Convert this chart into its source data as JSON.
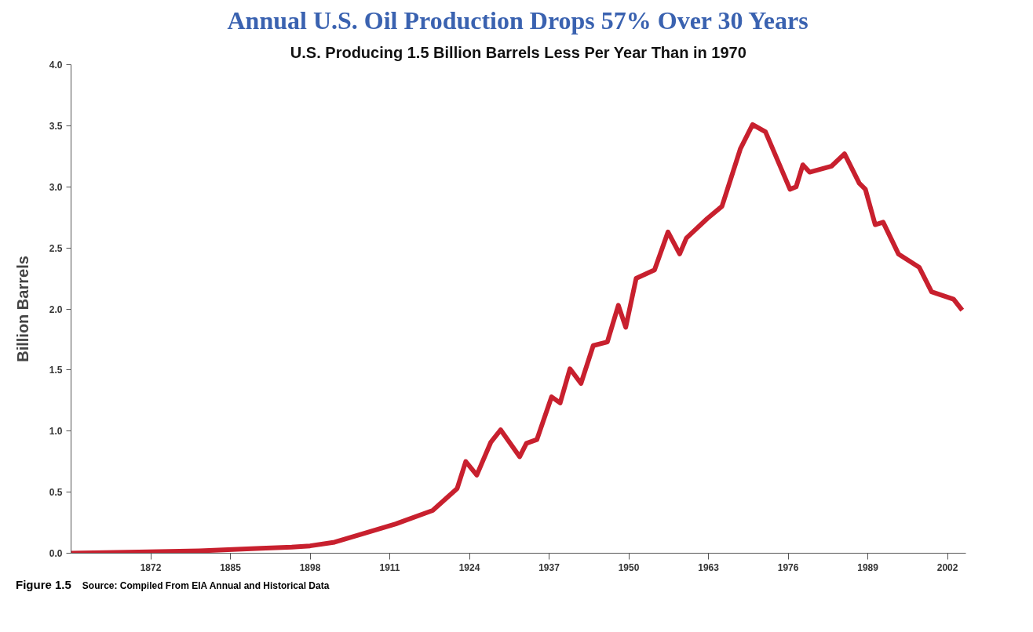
{
  "chart_data": {
    "type": "line",
    "title": "Annual U.S. Oil Production Drops 57% Over 30 Years",
    "subtitle": "U.S. Producing 1.5 Billion Barrels Less Per Year Than in 1970",
    "ylabel": "Billion Barrels",
    "annotations": [
      "Figure 1.5",
      "Source: Compiled From EIA Annual and Historical Data"
    ],
    "xlim": [
      1859,
      2005
    ],
    "ylim": [
      0,
      4
    ],
    "xticks": [
      1872,
      1885,
      1898,
      1911,
      1924,
      1937,
      1950,
      1963,
      1976,
      1989,
      2002
    ],
    "yticks": [
      {
        "value": 0,
        "label": "0.0"
      },
      0.5,
      {
        "value": 1,
        "label": "1.0"
      },
      1.5,
      {
        "value": 2,
        "label": "2.0"
      },
      2.5,
      {
        "value": 3,
        "label": "3.0"
      },
      3.5,
      {
        "value": 4,
        "label": "4.0"
      }
    ],
    "grid": false,
    "marker": "none",
    "line_style": "solid",
    "series": [
      {
        "color": "#c8202e",
        "x": [
          1859,
          1870,
          1880,
          1890,
          1895,
          1898,
          1902,
          1906,
          1912,
          1918,
          1922,
          1923.4,
          1925.2,
          1927.5,
          1929.1,
          1932.2,
          1933.3,
          1935,
          1937.4,
          1938.8,
          1940.4,
          1942.2,
          1944.2,
          1946.5,
          1948.3,
          1949.5,
          1951.2,
          1954.2,
          1956.4,
          1958.3,
          1959.4,
          1962.8,
          1965.2,
          1968.2,
          1970.2,
          1972.3,
          1976.3,
          1977.3,
          1978.4,
          1979.5,
          1983.1,
          1985.2,
          1987.6,
          1988.6,
          1990.2,
          1991.5,
          1994,
          1997.4,
          1999.4,
          2003,
          2004.4
        ],
        "values": [
          0.0,
          0.01,
          0.02,
          0.04,
          0.05,
          0.06,
          0.09,
          0.15,
          0.24,
          0.35,
          0.53,
          0.75,
          0.64,
          0.91,
          1.01,
          0.79,
          0.9,
          0.93,
          1.28,
          1.23,
          1.51,
          1.39,
          1.7,
          1.73,
          2.03,
          1.85,
          2.25,
          2.32,
          2.63,
          2.45,
          2.58,
          2.74,
          2.84,
          3.31,
          3.51,
          3.45,
          2.98,
          3.0,
          3.18,
          3.12,
          3.17,
          3.27,
          3.03,
          2.98,
          2.69,
          2.71,
          2.45,
          2.34,
          2.14,
          2.08,
          1.99
        ]
      }
    ]
  }
}
